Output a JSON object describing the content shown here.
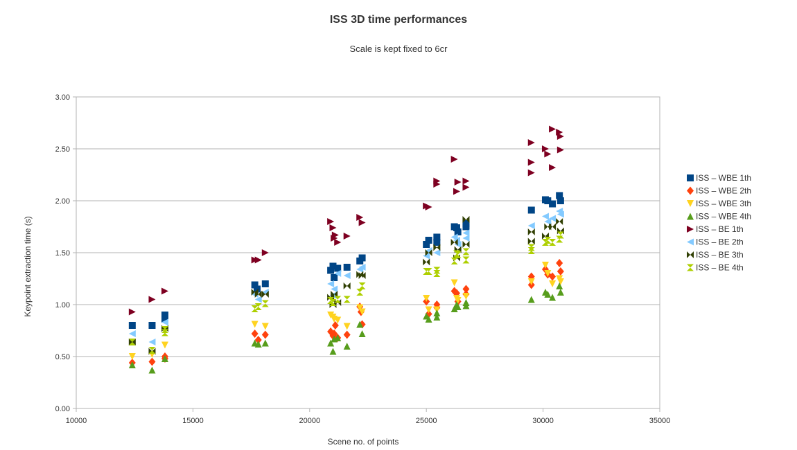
{
  "chart_data": {
    "type": "scatter",
    "title": "ISS 3D  time performances",
    "subtitle": "Scale is kept fixed to 6cr",
    "xlabel": "Scene no. of points",
    "ylabel": "Keypoint extraction time (s)",
    "xlim": [
      10000,
      35000
    ],
    "ylim": [
      0,
      3
    ],
    "x_ticks": [
      "10000",
      "15000",
      "20000",
      "25000",
      "30000",
      "35000"
    ],
    "y_ticks": [
      "0.00",
      "0.50",
      "1.00",
      "1.50",
      "2.00",
      "2.50",
      "3.00"
    ],
    "grid": "horizontal",
    "legend_position": "right",
    "series": [
      {
        "name": "ISS – WBE 1th",
        "color": "#004586",
        "marker": "square",
        "points": [
          [
            12400,
            0.8
          ],
          [
            13250,
            0.8
          ],
          [
            13800,
            0.86
          ],
          [
            13800,
            0.9
          ],
          [
            17650,
            1.19
          ],
          [
            17750,
            1.15
          ],
          [
            18100,
            1.2
          ],
          [
            20900,
            1.33
          ],
          [
            21000,
            1.37
          ],
          [
            21050,
            1.26
          ],
          [
            21200,
            1.35
          ],
          [
            21600,
            1.36
          ],
          [
            22150,
            1.42
          ],
          [
            22250,
            1.45
          ],
          [
            25000,
            1.58
          ],
          [
            25100,
            1.62
          ],
          [
            25450,
            1.6
          ],
          [
            25450,
            1.65
          ],
          [
            26200,
            1.75
          ],
          [
            26300,
            1.74
          ],
          [
            26350,
            1.7
          ],
          [
            26700,
            1.75
          ],
          [
            26700,
            1.78
          ],
          [
            29500,
            1.91
          ],
          [
            30100,
            2.01
          ],
          [
            30200,
            2.0
          ],
          [
            30400,
            1.97
          ],
          [
            30700,
            2.05
          ],
          [
            30750,
            2.0
          ]
        ]
      },
      {
        "name": "ISS – WBE 2th",
        "color": "#ff420e",
        "marker": "diamond",
        "points": [
          [
            12400,
            0.44
          ],
          [
            13250,
            0.45
          ],
          [
            13800,
            0.48
          ],
          [
            13800,
            0.5
          ],
          [
            17650,
            0.72
          ],
          [
            17800,
            0.66
          ],
          [
            18100,
            0.71
          ],
          [
            20900,
            0.74
          ],
          [
            21000,
            0.7
          ],
          [
            21050,
            0.72
          ],
          [
            21100,
            0.8
          ],
          [
            21200,
            0.68
          ],
          [
            21600,
            0.71
          ],
          [
            22150,
            0.98
          ],
          [
            22200,
            0.93
          ],
          [
            22250,
            0.81
          ],
          [
            25000,
            1.03
          ],
          [
            25100,
            0.91
          ],
          [
            25450,
            0.97
          ],
          [
            25450,
            1.0
          ],
          [
            26200,
            1.13
          ],
          [
            26300,
            1.11
          ],
          [
            26350,
            1.03
          ],
          [
            26700,
            1.15
          ],
          [
            26700,
            1.1
          ],
          [
            29500,
            1.27
          ],
          [
            29500,
            1.19
          ],
          [
            30100,
            1.34
          ],
          [
            30200,
            1.29
          ],
          [
            30400,
            1.27
          ],
          [
            30700,
            1.4
          ],
          [
            30750,
            1.32
          ]
        ]
      },
      {
        "name": "ISS – WBE 3th",
        "color": "#ffd320",
        "marker": "triangle-down",
        "points": [
          [
            12400,
            0.5
          ],
          [
            13250,
            0.52
          ],
          [
            13800,
            0.61
          ],
          [
            17650,
            0.81
          ],
          [
            18100,
            0.79
          ],
          [
            20900,
            0.9
          ],
          [
            21000,
            0.88
          ],
          [
            21050,
            0.86
          ],
          [
            21200,
            0.85
          ],
          [
            21600,
            0.79
          ],
          [
            22150,
            0.97
          ],
          [
            22250,
            0.93
          ],
          [
            25000,
            1.06
          ],
          [
            25100,
            0.95
          ],
          [
            25450,
            0.95
          ],
          [
            26200,
            1.21
          ],
          [
            26300,
            1.06
          ],
          [
            26350,
            1.04
          ],
          [
            26700,
            1.08
          ],
          [
            29500,
            1.22
          ],
          [
            30100,
            1.38
          ],
          [
            30200,
            1.3
          ],
          [
            30400,
            1.2
          ],
          [
            30700,
            1.25
          ],
          [
            30750,
            1.22
          ]
        ]
      },
      {
        "name": "ISS – WBE 4th",
        "color": "#579d1c",
        "marker": "triangle-up",
        "points": [
          [
            12400,
            0.42
          ],
          [
            13250,
            0.37
          ],
          [
            13800,
            0.48
          ],
          [
            17650,
            0.63
          ],
          [
            17800,
            0.62
          ],
          [
            18100,
            0.63
          ],
          [
            20900,
            0.63
          ],
          [
            21000,
            0.55
          ],
          [
            21050,
            0.67
          ],
          [
            21200,
            0.68
          ],
          [
            21600,
            0.6
          ],
          [
            22150,
            0.81
          ],
          [
            22250,
            0.72
          ],
          [
            25000,
            0.89
          ],
          [
            25100,
            0.86
          ],
          [
            25450,
            0.88
          ],
          [
            25450,
            0.92
          ],
          [
            26200,
            0.96
          ],
          [
            26300,
            1.0
          ],
          [
            26350,
            0.98
          ],
          [
            26700,
            1.02
          ],
          [
            26700,
            0.99
          ],
          [
            29500,
            1.05
          ],
          [
            30100,
            1.12
          ],
          [
            30200,
            1.1
          ],
          [
            30400,
            1.07
          ],
          [
            30700,
            1.18
          ],
          [
            30750,
            1.12
          ]
        ]
      },
      {
        "name": "ISS – BE 1th",
        "color": "#7e0021",
        "marker": "triangle-right",
        "points": [
          [
            12400,
            0.93
          ],
          [
            13250,
            1.05
          ],
          [
            13800,
            1.13
          ],
          [
            17650,
            1.43
          ],
          [
            17800,
            1.43
          ],
          [
            18100,
            1.5
          ],
          [
            20900,
            1.8
          ],
          [
            21000,
            1.74
          ],
          [
            21050,
            1.64
          ],
          [
            21100,
            1.67
          ],
          [
            21200,
            1.6
          ],
          [
            21600,
            1.66
          ],
          [
            22150,
            1.84
          ],
          [
            22250,
            1.79
          ],
          [
            25000,
            1.95
          ],
          [
            25100,
            1.94
          ],
          [
            25450,
            2.19
          ],
          [
            25450,
            2.16
          ],
          [
            26200,
            2.4
          ],
          [
            26300,
            2.09
          ],
          [
            26350,
            2.18
          ],
          [
            26700,
            2.19
          ],
          [
            26700,
            2.13
          ],
          [
            29500,
            2.56
          ],
          [
            29500,
            2.37
          ],
          [
            29500,
            2.27
          ],
          [
            30100,
            2.5
          ],
          [
            30200,
            2.45
          ],
          [
            30400,
            2.69
          ],
          [
            30400,
            2.32
          ],
          [
            30700,
            2.66
          ],
          [
            30750,
            2.49
          ],
          [
            30750,
            2.62
          ]
        ]
      },
      {
        "name": "ISS – BE 2th",
        "color": "#83caff",
        "marker": "triangle-left",
        "points": [
          [
            12400,
            0.72
          ],
          [
            13250,
            0.64
          ],
          [
            13800,
            0.83
          ],
          [
            17650,
            1.1
          ],
          [
            17800,
            1.05
          ],
          [
            18100,
            1.12
          ],
          [
            20900,
            1.2
          ],
          [
            21000,
            1.09
          ],
          [
            21050,
            1.15
          ],
          [
            21200,
            1.3
          ],
          [
            21600,
            1.28
          ],
          [
            22150,
            1.34
          ],
          [
            22250,
            1.36
          ],
          [
            25000,
            1.47
          ],
          [
            25100,
            1.52
          ],
          [
            25450,
            1.5
          ],
          [
            26200,
            1.65
          ],
          [
            26300,
            1.62
          ],
          [
            26350,
            1.58
          ],
          [
            26700,
            1.64
          ],
          [
            26700,
            1.69
          ],
          [
            29500,
            1.76
          ],
          [
            30100,
            1.85
          ],
          [
            30200,
            1.8
          ],
          [
            30400,
            1.83
          ],
          [
            30700,
            1.9
          ],
          [
            30750,
            1.87
          ]
        ]
      },
      {
        "name": "ISS – BE 3th",
        "color": "#314004",
        "marker": "bowtie",
        "points": [
          [
            12400,
            0.64
          ],
          [
            13250,
            0.55
          ],
          [
            13800,
            0.77
          ],
          [
            17650,
            1.12
          ],
          [
            17800,
            1.1
          ],
          [
            18100,
            1.1
          ],
          [
            20900,
            1.07
          ],
          [
            21000,
            1.0
          ],
          [
            21050,
            1.1
          ],
          [
            21200,
            1.02
          ],
          [
            21600,
            1.18
          ],
          [
            22150,
            1.29
          ],
          [
            22250,
            1.28
          ],
          [
            25000,
            1.41
          ],
          [
            25100,
            1.5
          ],
          [
            25450,
            1.55
          ],
          [
            26200,
            1.6
          ],
          [
            26300,
            1.45
          ],
          [
            26350,
            1.53
          ],
          [
            26700,
            1.58
          ],
          [
            26700,
            1.82
          ],
          [
            29500,
            1.61
          ],
          [
            29500,
            1.7
          ],
          [
            30100,
            1.66
          ],
          [
            30200,
            1.75
          ],
          [
            30400,
            1.75
          ],
          [
            30700,
            1.8
          ],
          [
            30750,
            1.71
          ]
        ]
      },
      {
        "name": "ISS – BE 4th",
        "color": "#aecf00",
        "marker": "hourglass",
        "points": [
          [
            12400,
            0.64
          ],
          [
            13250,
            0.56
          ],
          [
            13800,
            0.73
          ],
          [
            13800,
            0.76
          ],
          [
            17650,
            0.96
          ],
          [
            17800,
            0.98
          ],
          [
            18100,
            1.01
          ],
          [
            20900,
            1.04
          ],
          [
            21000,
            1.02
          ],
          [
            21200,
            1.05
          ],
          [
            21600,
            1.05
          ],
          [
            22150,
            1.12
          ],
          [
            22250,
            1.18
          ],
          [
            25000,
            1.32
          ],
          [
            25100,
            1.32
          ],
          [
            25450,
            1.3
          ],
          [
            25450,
            1.33
          ],
          [
            26200,
            1.42
          ],
          [
            26300,
            1.49
          ],
          [
            26350,
            1.48
          ],
          [
            26700,
            1.43
          ],
          [
            26700,
            1.51
          ],
          [
            29500,
            1.55
          ],
          [
            29500,
            1.52
          ],
          [
            30100,
            1.6
          ],
          [
            30200,
            1.62
          ],
          [
            30400,
            1.6
          ],
          [
            30700,
            1.63
          ],
          [
            30750,
            1.67
          ]
        ]
      }
    ]
  }
}
